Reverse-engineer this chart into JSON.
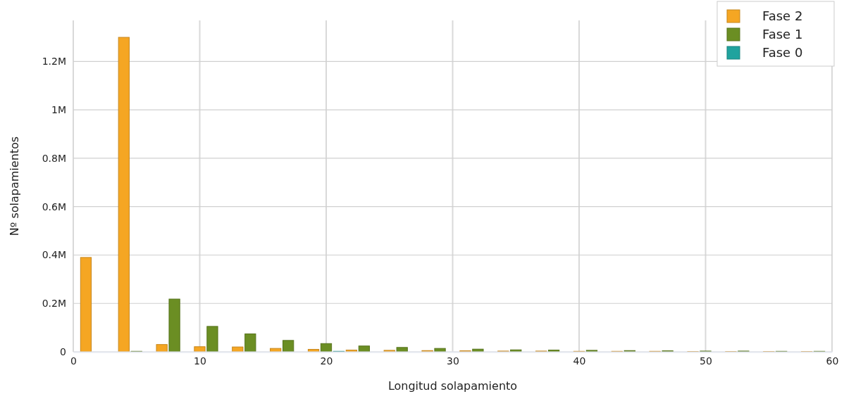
{
  "chart_data": {
    "type": "bar",
    "xlabel": "Longitud solapamiento",
    "ylabel": "Nº solapamientos",
    "xlim": [
      0,
      60
    ],
    "xticks": [
      0,
      10,
      20,
      30,
      40,
      50,
      60
    ],
    "ylim": [
      0,
      1370000
    ],
    "yticks": [
      0,
      {
        "value": 200000,
        "label": "0.2M"
      },
      {
        "value": 400000,
        "label": "0.4M"
      },
      {
        "value": 600000,
        "label": "0.6M"
      },
      {
        "value": 800000,
        "label": "0.8M"
      },
      {
        "value": 1000000,
        "label": "1M"
      },
      {
        "value": 1200000,
        "label": "1.2M"
      }
    ],
    "grid": true,
    "legend": "top right",
    "series": [
      {
        "name": "Fase 2",
        "color": "#f5a623",
        "x": [
          1,
          4,
          7,
          10,
          13,
          16,
          19,
          22,
          25,
          28,
          31,
          34,
          37,
          40,
          43,
          46,
          49,
          52,
          55,
          58
        ],
        "values": [
          390000,
          1300000,
          30000,
          21000,
          20000,
          14000,
          10000,
          7000,
          6000,
          5000,
          4000,
          3000,
          3000,
          2000,
          2000,
          2000,
          1000,
          1000,
          1000,
          1000
        ]
      },
      {
        "name": "Fase 1",
        "color": "#6b8e23",
        "x": [
          5,
          8,
          11,
          14,
          17,
          20,
          23,
          26,
          29,
          32,
          35,
          38,
          41,
          44,
          47,
          50,
          53,
          56,
          59
        ],
        "values": [
          2000,
          218000,
          105000,
          74000,
          47000,
          34000,
          24000,
          18000,
          14000,
          11000,
          8000,
          7000,
          6000,
          5000,
          4000,
          3000,
          3000,
          2000,
          2000
        ]
      },
      {
        "name": "Fase 0",
        "color": "#20a39e",
        "x": [
          21
        ],
        "values": [
          2000
        ]
      }
    ]
  }
}
